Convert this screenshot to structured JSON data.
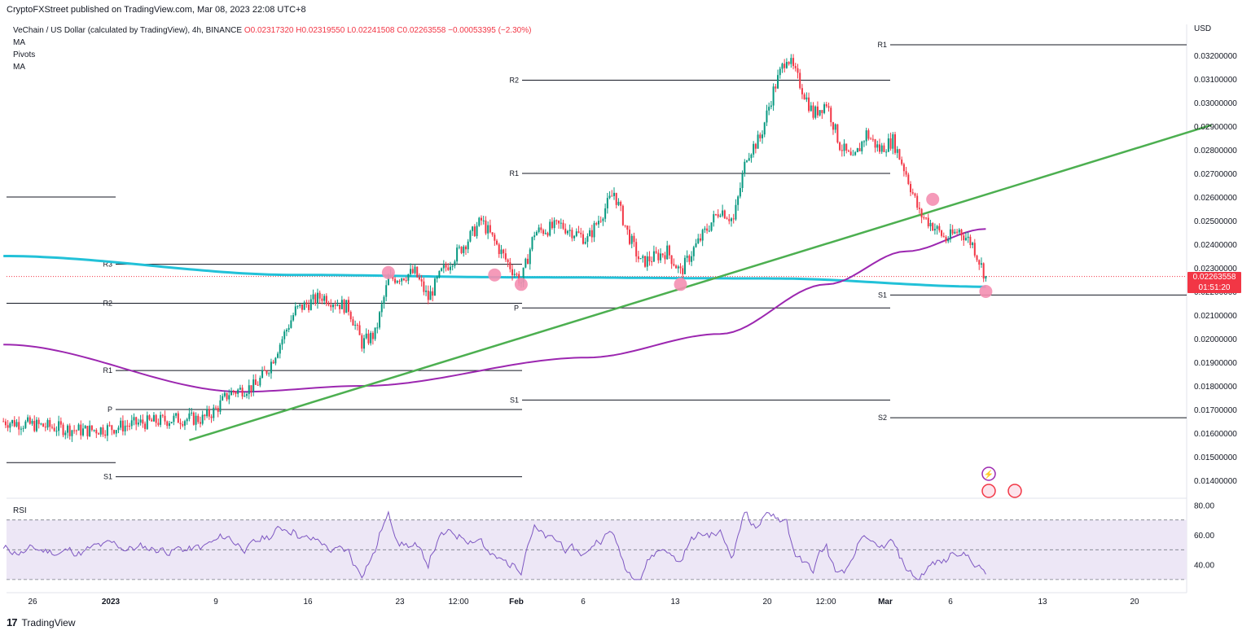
{
  "header": {
    "published": "CryptoFXStreet published on TradingView.com, Mar 08, 2023 22:08 UTC+8"
  },
  "legend": {
    "symbol": "VeChain / US Dollar (calculated by TradingView), 4h, BINANCE",
    "open": "O0.02317320",
    "high": "H0.02319550",
    "low": "L0.02241508",
    "close": "C0.02263558",
    "change": "−0.00053395 (−2.30%)",
    "indicators": [
      "MA",
      "Pivots",
      "MA"
    ]
  },
  "currency": "USD",
  "last_price": "0.02263558",
  "countdown": "01:51:20",
  "rsi_label": "RSI",
  "footer": {
    "brand": "TradingView"
  },
  "colors": {
    "up": "#089981",
    "down": "#f23645",
    "ma_cyan": "#22c1d8",
    "ma_purple": "#9c27b0",
    "trendline": "#4caf50",
    "rsi": "#7e57c2",
    "rsi_band": "#ede7f6",
    "marker": "#f48fb1"
  },
  "chart_data": {
    "type": "candlestick",
    "y_axis": {
      "range": [
        0.0135,
        0.0327
      ],
      "ticks": [
        "0.03200000",
        "0.03100000",
        "0.03000000",
        "0.02900000",
        "0.02800000",
        "0.02700000",
        "0.02600000",
        "0.02500000",
        "0.02400000",
        "0.02300000",
        "0.02200000",
        "0.02100000",
        "0.02000000",
        "0.01900000",
        "0.01800000",
        "0.01700000",
        "0.01600000",
        "0.01500000",
        "0.01400000"
      ]
    },
    "x_axis": {
      "ticks": [
        "26",
        "2023",
        "9",
        "16",
        "23",
        "12:00",
        "Feb",
        "6",
        "13",
        "20",
        "12:00",
        "Mar",
        "6",
        "13",
        "20"
      ]
    },
    "close_path": [
      [
        "Dec 24",
        0.0165
      ],
      [
        "Dec 27",
        0.0163
      ],
      [
        "Dec 30",
        0.0161
      ],
      [
        "Jan 1",
        0.0162
      ],
      [
        "Jan 3",
        0.0164
      ],
      [
        "Jan 6",
        0.0166
      ],
      [
        "Jan 8",
        0.0166
      ],
      [
        "Jan 9",
        0.017
      ],
      [
        "Jan 10",
        0.0177
      ],
      [
        "Jan 12",
        0.018
      ],
      [
        "Jan 13",
        0.0188
      ],
      [
        "Jan 14",
        0.02
      ],
      [
        "Jan 15",
        0.0212
      ],
      [
        "Jan 17",
        0.0218
      ],
      [
        "Jan 19",
        0.0213
      ],
      [
        "Jan 20",
        0.0198
      ],
      [
        "Jan 21",
        0.0202
      ],
      [
        "Jan 22",
        0.0225
      ],
      [
        "Jan 24",
        0.0228
      ],
      [
        "Jan 25",
        0.0217
      ],
      [
        "Jan 26",
        0.0228
      ],
      [
        "Jan 28",
        0.0242
      ],
      [
        "Jan 29",
        0.025
      ],
      [
        "Jan 31",
        0.0232
      ],
      [
        "Feb 1",
        0.0224
      ],
      [
        "Feb 2",
        0.0245
      ],
      [
        "Feb 4",
        0.0248
      ],
      [
        "Feb 6",
        0.0242
      ],
      [
        "Feb 8",
        0.0262
      ],
      [
        "Feb 9",
        0.0245
      ],
      [
        "Feb 10",
        0.0232
      ],
      [
        "Feb 12",
        0.0237
      ],
      [
        "Feb 13",
        0.0228
      ],
      [
        "Feb 14",
        0.0238
      ],
      [
        "Feb 16",
        0.0255
      ],
      [
        "Feb 17",
        0.025
      ],
      [
        "Feb 18",
        0.0278
      ],
      [
        "Feb 19",
        0.0285
      ],
      [
        "Feb 20",
        0.0305
      ],
      [
        "Feb 21",
        0.032
      ],
      [
        "Feb 22",
        0.0308
      ],
      [
        "Feb 23",
        0.0295
      ],
      [
        "Feb 24",
        0.03
      ],
      [
        "Feb 25",
        0.0282
      ],
      [
        "Feb 26",
        0.0275
      ],
      [
        "Feb 27",
        0.0287
      ],
      [
        "Feb 28",
        0.028
      ],
      [
        "Mar 1",
        0.0284
      ],
      [
        "Mar 2",
        0.027
      ],
      [
        "Mar 3",
        0.0253
      ],
      [
        "Mar 4",
        0.0248
      ],
      [
        "Mar 5",
        0.0242
      ],
      [
        "Mar 6",
        0.0246
      ],
      [
        "Mar 7",
        0.024
      ],
      [
        "Mar 8",
        0.0226
      ]
    ],
    "pivots": [
      {
        "period": "January",
        "labels": [
          {
            "name": "R3",
            "value": 0.02315
          },
          {
            "name": "R2",
            "value": 0.0215
          },
          {
            "name": "R1",
            "value": 0.01865
          },
          {
            "name": "P",
            "value": 0.017
          },
          {
            "name": "S1",
            "value": 0.01415
          }
        ]
      },
      {
        "period": "February",
        "labels": [
          {
            "name": "R2",
            "value": 0.03095
          },
          {
            "name": "R1",
            "value": 0.027
          },
          {
            "name": "P",
            "value": 0.0213
          },
          {
            "name": "S1",
            "value": 0.0174
          }
        ]
      },
      {
        "period": "March",
        "labels": [
          {
            "name": "R1",
            "value": 0.03245
          },
          {
            "name": "S1",
            "value": 0.02185
          },
          {
            "name": "S2",
            "value": 0.01665
          }
        ]
      }
    ],
    "ma_long_cyan": [
      [
        "Dec 24",
        0.0235
      ],
      [
        "Jan 15",
        0.0227
      ],
      [
        "Feb 1",
        0.0226
      ],
      [
        "Feb 20",
        0.02255
      ],
      [
        "Mar 8",
        0.0222
      ]
    ],
    "ma_short_purple": [
      [
        "Dec 24",
        0.01975
      ],
      [
        "Jan 11",
        0.01775
      ],
      [
        "Jan 20",
        0.018
      ],
      [
        "Feb 6",
        0.0192
      ],
      [
        "Feb 16",
        0.0202
      ],
      [
        "Feb 24",
        0.0223
      ],
      [
        "Mar 2",
        0.0237
      ],
      [
        "Mar 8",
        0.02465
      ]
    ],
    "trendline": [
      [
        "Jan 7",
        0.0157
      ],
      [
        "Mar 25",
        0.02905
      ]
    ],
    "markers": [
      [
        "Jan 22",
        0.0228
      ],
      [
        "Jan 30",
        0.0227
      ],
      [
        "Feb 1",
        0.0223
      ],
      [
        "Feb 13",
        0.0223
      ],
      [
        "Mar 4",
        0.0259
      ],
      [
        "Mar 8",
        0.022
      ]
    ],
    "rsi": {
      "levels": [
        70,
        50,
        30
      ],
      "ticks": [
        "80.00",
        "60.00",
        "40.00"
      ]
    }
  }
}
